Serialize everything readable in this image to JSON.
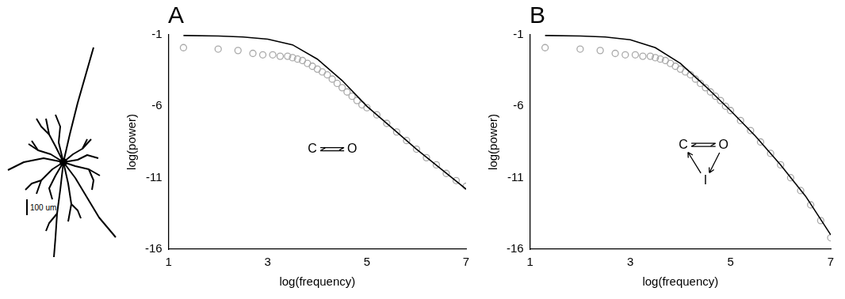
{
  "chart_data": [
    {
      "type": "scatter",
      "panel": "A",
      "x_label": "log(frequency)",
      "y_label": "log(power)",
      "xlim": [
        1,
        7
      ],
      "ylim": [
        -16,
        -1
      ],
      "xticks": [
        1,
        3,
        5,
        7
      ],
      "yticks": [
        -16,
        -11,
        -6,
        -1
      ],
      "grid": false,
      "annotations": [
        {
          "text": "C",
          "x": 3.9,
          "y": -9.0
        },
        {
          "text": "O",
          "x": 4.7,
          "y": -9.0
        }
      ],
      "series": [
        {
          "type": "scatter",
          "color": "#aaaaaa",
          "marker": "circle",
          "x": [
            1.3,
            2.0,
            2.4,
            2.7,
            2.9,
            3.1,
            3.25,
            3.4,
            3.5,
            3.6,
            3.7,
            3.8,
            3.9,
            4.0,
            4.1,
            4.2,
            4.3,
            4.4,
            4.5,
            4.6,
            4.7,
            4.8,
            4.9,
            5.0,
            5.2,
            5.4,
            5.6,
            5.8,
            6.0,
            6.2,
            6.4,
            6.6,
            6.8,
            7.0
          ],
          "values": [
            -1.9,
            -2.0,
            -2.1,
            -2.3,
            -2.4,
            -2.4,
            -2.5,
            -2.5,
            -2.6,
            -2.7,
            -2.8,
            -3.0,
            -3.2,
            -3.4,
            -3.6,
            -3.8,
            -4.1,
            -4.4,
            -4.7,
            -5.0,
            -5.3,
            -5.6,
            -5.9,
            -6.1,
            -6.6,
            -7.2,
            -7.8,
            -8.4,
            -9.0,
            -9.6,
            -10.1,
            -10.7,
            -11.2,
            -11.6
          ]
        },
        {
          "type": "line",
          "color": "#000000",
          "line_style": "solid",
          "x": [
            1.3,
            2.0,
            2.5,
            3.0,
            3.5,
            4.0,
            4.5,
            5.0,
            5.5,
            6.0,
            6.5,
            7.0
          ],
          "values": [
            -1.05,
            -1.08,
            -1.15,
            -1.3,
            -1.7,
            -2.7,
            -4.2,
            -6.0,
            -7.5,
            -9.0,
            -10.4,
            -11.8
          ]
        }
      ]
    },
    {
      "type": "scatter",
      "panel": "B",
      "x_label": "log(frequency)",
      "y_label": "log(power)",
      "xlim": [
        1,
        7
      ],
      "ylim": [
        -16,
        -1
      ],
      "xticks": [
        1,
        3,
        5,
        7
      ],
      "yticks": [
        -16,
        -11,
        -6,
        -1
      ],
      "grid": false,
      "annotations": [
        {
          "text": "C",
          "x": 4.06,
          "y": -8.7
        },
        {
          "text": "O",
          "x": 4.86,
          "y": -8.7
        },
        {
          "text": "I",
          "x": 4.5,
          "y": -11.2
        }
      ],
      "series": [
        {
          "type": "scatter",
          "color": "#aaaaaa",
          "marker": "circle",
          "x": [
            1.3,
            2.0,
            2.4,
            2.7,
            2.9,
            3.1,
            3.25,
            3.4,
            3.5,
            3.6,
            3.7,
            3.8,
            3.9,
            4.0,
            4.1,
            4.2,
            4.3,
            4.4,
            4.5,
            4.6,
            4.7,
            4.8,
            4.9,
            5.0,
            5.2,
            5.4,
            5.6,
            5.8,
            6.0,
            6.2,
            6.4,
            6.6,
            6.8,
            7.0
          ],
          "values": [
            -1.9,
            -2.0,
            -2.1,
            -2.3,
            -2.4,
            -2.4,
            -2.5,
            -2.5,
            -2.6,
            -2.7,
            -2.8,
            -3.0,
            -3.2,
            -3.4,
            -3.6,
            -3.8,
            -4.1,
            -4.4,
            -4.7,
            -5.0,
            -5.3,
            -5.6,
            -6.0,
            -6.3,
            -7.0,
            -7.7,
            -8.5,
            -9.3,
            -10.1,
            -11.0,
            -11.9,
            -12.9,
            -14.0,
            -15.2
          ]
        },
        {
          "type": "line",
          "color": "#000000",
          "line_style": "solid",
          "x": [
            1.3,
            2.0,
            2.5,
            3.0,
            3.5,
            4.0,
            4.5,
            5.0,
            5.5,
            6.0,
            6.5,
            7.0
          ],
          "values": [
            -1.05,
            -1.08,
            -1.15,
            -1.35,
            -1.9,
            -3.0,
            -4.6,
            -6.3,
            -8.1,
            -10.1,
            -12.3,
            -15.0
          ]
        }
      ]
    }
  ],
  "morphology": {
    "scale_label": "100 um"
  }
}
